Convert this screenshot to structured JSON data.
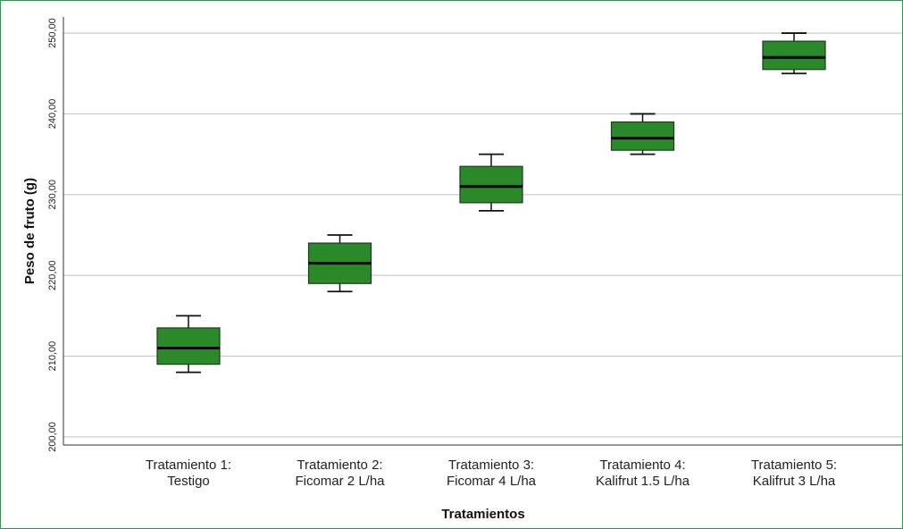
{
  "chart_data": {
    "type": "boxplot",
    "xlabel": "Tratamientos",
    "ylabel": "Peso de fruto (g)",
    "ylim": [
      199,
      252
    ],
    "yticks": [
      200,
      210,
      220,
      230,
      240,
      250
    ],
    "ytick_labels": [
      "200,00",
      "210,00",
      "220,00",
      "230,00",
      "240,00",
      "250,00"
    ],
    "grid": "horizontal",
    "box_color": "#2a8a2a",
    "categories": [
      {
        "line1": "Tratamiento 1:",
        "line2": "Testigo"
      },
      {
        "line1": "Tratamiento 2:",
        "line2": "Ficomar 2 L/ha"
      },
      {
        "line1": "Tratamiento 3:",
        "line2": "Ficomar 4 L/ha"
      },
      {
        "line1": "Tratamiento 4:",
        "line2": "Kalifrut 1.5 L/ha"
      },
      {
        "line1": "Tratamiento 5:",
        "line2": "Kalifrut 3 L/ha"
      }
    ],
    "boxes": [
      {
        "min": 208,
        "q1": 209,
        "median": 211,
        "q3": 213.5,
        "max": 215
      },
      {
        "min": 218,
        "q1": 219,
        "median": 221.5,
        "q3": 224,
        "max": 225
      },
      {
        "min": 228,
        "q1": 229,
        "median": 231,
        "q3": 233.5,
        "max": 235
      },
      {
        "min": 235,
        "q1": 235.5,
        "median": 237,
        "q3": 239,
        "max": 240
      },
      {
        "min": 245,
        "q1": 245.5,
        "median": 247,
        "q3": 249,
        "max": 250
      }
    ]
  }
}
